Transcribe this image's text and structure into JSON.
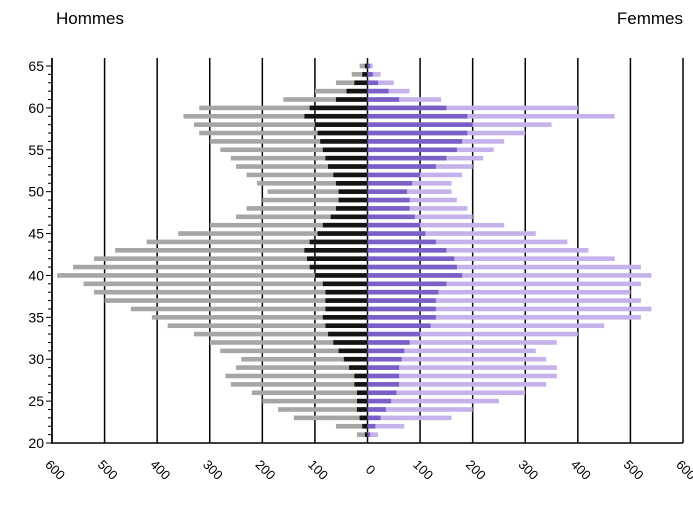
{
  "chart_data": {
    "type": "population-pyramid",
    "left_label": "Hommes",
    "right_label": "Femmes",
    "y_range": [
      20,
      65
    ],
    "y_ticks": [
      "20",
      "25",
      "30",
      "35",
      "40",
      "45",
      "50",
      "55",
      "60",
      "65"
    ],
    "x_range": [
      -600,
      600
    ],
    "x_ticks": [
      "600",
      "500",
      "400",
      "300",
      "200",
      "100",
      "0",
      "100",
      "200",
      "300",
      "400",
      "500",
      "600"
    ],
    "grid": "vertical lines at every 100",
    "colors": {
      "men_outer": "#a6a6a6",
      "men_inner": "#141414",
      "women_outer": "#c6b2ea",
      "women_inner": "#7a5fc6"
    },
    "series": [
      {
        "name": "Hommes",
        "side": "left",
        "ages": [
          21,
          22,
          23,
          24,
          25,
          26,
          27,
          28,
          29,
          30,
          31,
          32,
          33,
          34,
          35,
          36,
          37,
          38,
          39,
          40,
          41,
          42,
          43,
          44,
          45,
          46,
          47,
          48,
          49,
          50,
          51,
          52,
          53,
          54,
          55,
          56,
          57,
          58,
          59,
          60,
          61,
          62,
          63,
          64,
          65
        ],
        "outer": [
          20,
          60,
          140,
          170,
          200,
          220,
          260,
          270,
          250,
          240,
          280,
          300,
          330,
          380,
          410,
          450,
          500,
          520,
          540,
          590,
          560,
          520,
          480,
          420,
          360,
          300,
          250,
          230,
          200,
          190,
          210,
          230,
          250,
          260,
          280,
          300,
          320,
          330,
          350,
          320,
          160,
          100,
          60,
          30,
          15
        ],
        "inner": [
          5,
          10,
          15,
          20,
          20,
          20,
          25,
          25,
          35,
          45,
          55,
          65,
          75,
          80,
          85,
          80,
          80,
          80,
          85,
          100,
          110,
          115,
          120,
          110,
          95,
          85,
          70,
          60,
          55,
          55,
          60,
          65,
          75,
          80,
          85,
          90,
          95,
          100,
          120,
          110,
          60,
          40,
          25,
          10,
          5
        ]
      },
      {
        "name": "Femmes",
        "side": "right",
        "ages": [
          21,
          22,
          23,
          24,
          25,
          26,
          27,
          28,
          29,
          30,
          31,
          32,
          33,
          34,
          35,
          36,
          37,
          38,
          39,
          40,
          41,
          42,
          43,
          44,
          45,
          46,
          47,
          48,
          49,
          50,
          51,
          52,
          53,
          54,
          55,
          56,
          57,
          58,
          59,
          60,
          61,
          62,
          63,
          64,
          65
        ],
        "outer": [
          20,
          70,
          160,
          200,
          250,
          300,
          340,
          360,
          360,
          340,
          320,
          360,
          400,
          450,
          520,
          540,
          520,
          500,
          520,
          540,
          520,
          470,
          420,
          380,
          320,
          260,
          200,
          190,
          170,
          160,
          160,
          180,
          200,
          220,
          240,
          260,
          300,
          350,
          470,
          400,
          140,
          80,
          50,
          25,
          10
        ],
        "inner": [
          5,
          15,
          25,
          35,
          45,
          55,
          60,
          60,
          60,
          65,
          70,
          80,
          100,
          120,
          130,
          130,
          130,
          135,
          150,
          180,
          170,
          165,
          150,
          130,
          110,
          100,
          90,
          80,
          80,
          75,
          85,
          100,
          130,
          150,
          170,
          180,
          190,
          200,
          190,
          150,
          60,
          40,
          20,
          10,
          5
        ]
      }
    ]
  }
}
